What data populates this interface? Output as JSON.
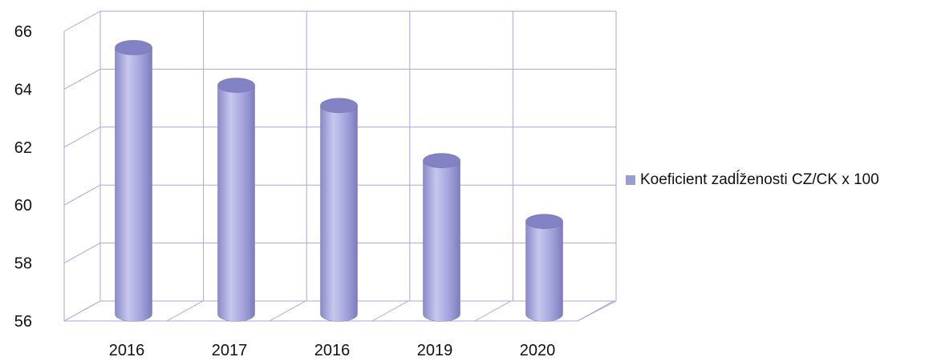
{
  "chart_data": {
    "type": "bar",
    "style": "3d-cylinder",
    "categories": [
      "2016",
      "2017",
      "2016",
      "2019",
      "2020"
    ],
    "series": [
      {
        "name": "Koeficient zadĺženosti CZ/CK x 100",
        "values": [
          65.2,
          63.9,
          63.2,
          61.3,
          59.2
        ]
      }
    ],
    "ylim": [
      56,
      66
    ],
    "yticks": [
      "56",
      "58",
      "60",
      "62",
      "64",
      "66"
    ],
    "grid": true,
    "legend_position": "right",
    "colors": {
      "bar_fill": "#a3a3dc",
      "bar_top": "#8282c4",
      "grid": "#a7a7de",
      "legend_swatch": "#9b9bd6"
    }
  }
}
